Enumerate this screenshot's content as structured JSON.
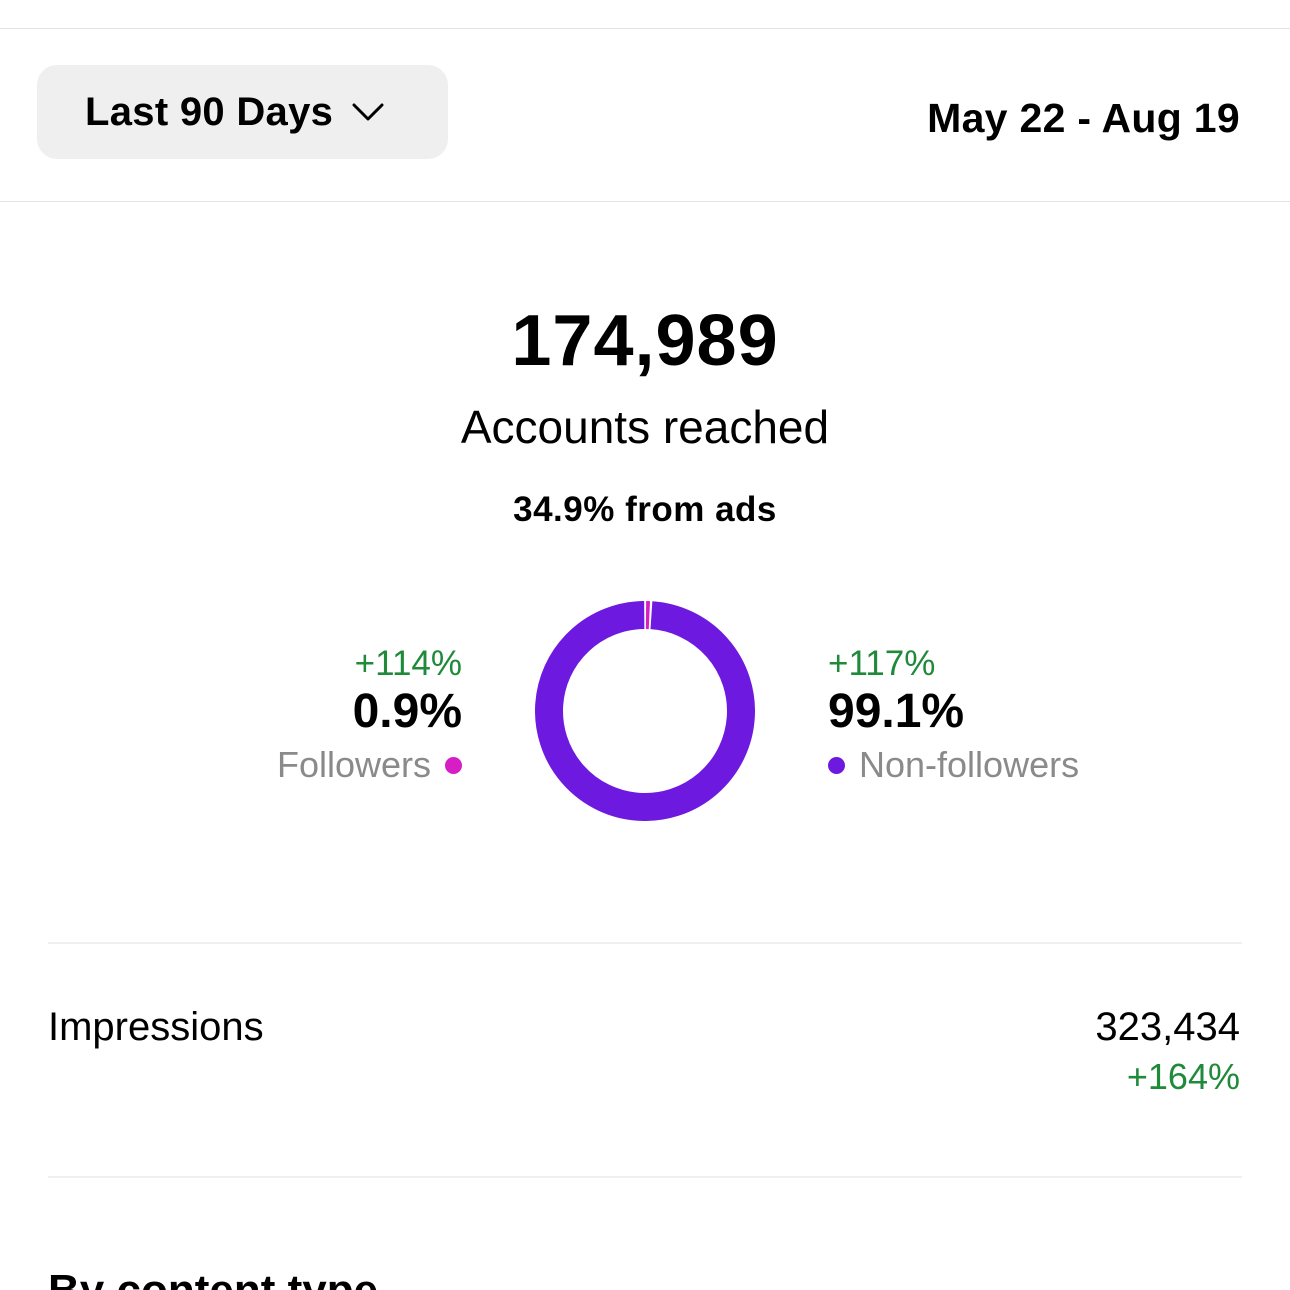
{
  "header": {
    "range_label": "Last 90 Days",
    "date_range": "May 22 - Aug 19"
  },
  "summary": {
    "value": "174,989",
    "caption": "Accounts reached",
    "ads_note": "34.9% from ads"
  },
  "chart_data": {
    "type": "pie",
    "categories": [
      "Followers",
      "Non-followers"
    ],
    "values": [
      0.9,
      99.1
    ],
    "colors": [
      "#d61ec4",
      "#6e19e0"
    ]
  },
  "followers": {
    "change": "+114%",
    "value": "0.9%",
    "label": "Followers",
    "color": "#d61ec4"
  },
  "non_followers": {
    "change": "+117%",
    "value": "99.1%",
    "label": "Non-followers",
    "color": "#6e19e0"
  },
  "impressions": {
    "label": "Impressions",
    "value": "323,434",
    "change": "+164%"
  },
  "next_section": {
    "heading": "By content type"
  },
  "colors": {
    "positive": "#1f8a3a",
    "muted": "#8a8a8a",
    "button_bg": "#efefef"
  }
}
